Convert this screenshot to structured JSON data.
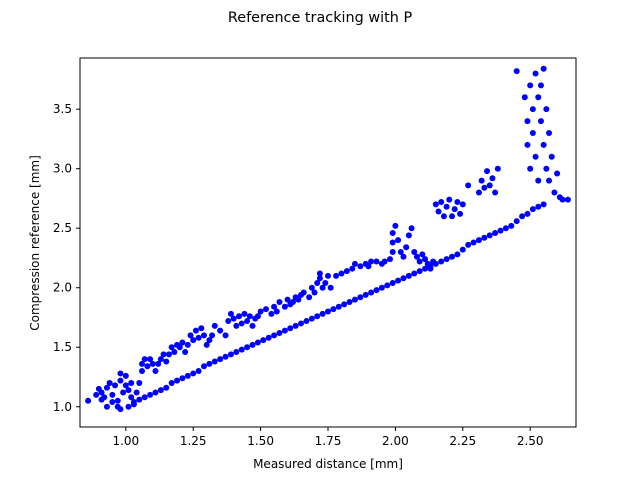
{
  "chart_data": {
    "type": "scatter",
    "title": "Reference tracking with P",
    "xlabel": "Measured distance [mm]",
    "ylabel": "Compression reference [mm]",
    "xlim": [
      0.83,
      2.67
    ],
    "ylim": [
      0.83,
      3.93
    ],
    "xticks": [
      "1.00",
      "1.25",
      "1.50",
      "1.75",
      "2.00",
      "2.25",
      "2.50"
    ],
    "xtick_values": [
      1.0,
      1.25,
      1.5,
      1.75,
      2.0,
      2.25,
      2.5
    ],
    "yticks": [
      "1.0",
      "1.5",
      "2.0",
      "2.5",
      "3.0",
      "3.5"
    ],
    "ytick_values": [
      1.0,
      1.5,
      2.0,
      2.5,
      3.0,
      3.5
    ],
    "grid": false,
    "marker_color": "#0000ff",
    "series": [
      {
        "points": [
          [
            0.86,
            1.05
          ],
          [
            0.89,
            1.1
          ],
          [
            0.9,
            1.15
          ],
          [
            0.91,
            1.12
          ],
          [
            0.92,
            1.08
          ],
          [
            0.93,
            1.16
          ],
          [
            0.94,
            1.2
          ],
          [
            0.95,
            1.1
          ],
          [
            0.96,
            1.18
          ],
          [
            0.97,
            1.05
          ],
          [
            0.97,
            1.0
          ],
          [
            0.98,
            1.22
          ],
          [
            0.98,
            1.28
          ],
          [
            0.99,
            1.12
          ],
          [
            1.0,
            1.18
          ],
          [
            1.0,
            1.26
          ],
          [
            1.01,
            1.14
          ],
          [
            1.02,
            1.2
          ],
          [
            1.02,
            1.08
          ],
          [
            1.03,
            1.02
          ],
          [
            1.04,
            1.12
          ],
          [
            1.05,
            1.2
          ],
          [
            1.06,
            1.3
          ],
          [
            1.06,
            1.36
          ],
          [
            1.07,
            1.4
          ],
          [
            1.08,
            1.34
          ],
          [
            1.09,
            1.4
          ],
          [
            1.1,
            1.36
          ],
          [
            1.11,
            1.3
          ],
          [
            1.12,
            1.36
          ],
          [
            1.13,
            1.4
          ],
          [
            1.14,
            1.44
          ],
          [
            1.15,
            1.38
          ],
          [
            1.16,
            1.44
          ],
          [
            1.17,
            1.5
          ],
          [
            1.18,
            1.46
          ],
          [
            1.19,
            1.52
          ],
          [
            1.2,
            1.5
          ],
          [
            1.21,
            1.54
          ],
          [
            1.22,
            1.46
          ],
          [
            1.23,
            1.52
          ],
          [
            1.24,
            1.6
          ],
          [
            1.25,
            1.56
          ],
          [
            1.26,
            1.64
          ],
          [
            1.27,
            1.58
          ],
          [
            1.28,
            1.66
          ],
          [
            1.29,
            1.6
          ],
          [
            1.3,
            1.52
          ],
          [
            1.31,
            1.56
          ],
          [
            1.32,
            1.6
          ],
          [
            1.33,
            1.68
          ],
          [
            1.35,
            1.64
          ],
          [
            1.37,
            1.6
          ],
          [
            1.38,
            1.72
          ],
          [
            1.39,
            1.78
          ],
          [
            1.4,
            1.74
          ],
          [
            1.41,
            1.68
          ],
          [
            1.42,
            1.76
          ],
          [
            1.43,
            1.7
          ],
          [
            1.44,
            1.78
          ],
          [
            1.45,
            1.72
          ],
          [
            1.46,
            1.76
          ],
          [
            1.47,
            1.68
          ],
          [
            1.48,
            1.74
          ],
          [
            1.49,
            1.76
          ],
          [
            1.5,
            1.8
          ],
          [
            1.52,
            1.82
          ],
          [
            1.54,
            1.78
          ],
          [
            1.55,
            1.84
          ],
          [
            1.56,
            1.8
          ],
          [
            1.57,
            1.88
          ],
          [
            1.59,
            1.84
          ],
          [
            1.6,
            1.9
          ],
          [
            1.61,
            1.86
          ],
          [
            1.62,
            1.88
          ],
          [
            1.63,
            1.92
          ],
          [
            1.64,
            1.9
          ],
          [
            1.65,
            1.94
          ],
          [
            1.66,
            1.96
          ],
          [
            1.68,
            1.92
          ],
          [
            1.69,
            2.0
          ],
          [
            1.7,
            1.96
          ],
          [
            1.71,
            2.04
          ],
          [
            1.72,
            2.08
          ],
          [
            1.72,
            2.12
          ],
          [
            1.73,
            2.0
          ],
          [
            1.74,
            2.04
          ],
          [
            1.75,
            2.1
          ],
          [
            1.76,
            2.0
          ],
          [
            1.78,
            2.1
          ],
          [
            1.8,
            2.12
          ],
          [
            1.82,
            2.14
          ],
          [
            1.84,
            2.16
          ],
          [
            1.85,
            2.2
          ],
          [
            1.87,
            2.18
          ],
          [
            1.89,
            2.2
          ],
          [
            1.9,
            2.18
          ],
          [
            1.91,
            2.22
          ],
          [
            1.93,
            2.22
          ],
          [
            1.95,
            2.2
          ],
          [
            1.96,
            2.22
          ],
          [
            1.98,
            2.24
          ],
          [
            1.99,
            2.3
          ],
          [
            1.99,
            2.38
          ],
          [
            1.99,
            2.46
          ],
          [
            2.0,
            2.52
          ],
          [
            2.01,
            2.4
          ],
          [
            2.02,
            2.3
          ],
          [
            2.03,
            2.26
          ],
          [
            2.04,
            2.34
          ],
          [
            2.05,
            2.44
          ],
          [
            2.06,
            2.5
          ],
          [
            2.07,
            2.3
          ],
          [
            2.08,
            2.26
          ],
          [
            2.09,
            2.22
          ],
          [
            2.1,
            2.28
          ],
          [
            2.11,
            2.24
          ],
          [
            2.12,
            2.2
          ],
          [
            2.13,
            2.16
          ],
          [
            2.14,
            2.22
          ],
          [
            2.15,
            2.7
          ],
          [
            2.16,
            2.64
          ],
          [
            2.17,
            2.72
          ],
          [
            2.18,
            2.6
          ],
          [
            2.19,
            2.68
          ],
          [
            2.2,
            2.74
          ],
          [
            2.21,
            2.6
          ],
          [
            2.22,
            2.66
          ],
          [
            2.23,
            2.72
          ],
          [
            2.24,
            2.62
          ],
          [
            2.25,
            2.7
          ],
          [
            2.27,
            2.86
          ],
          [
            2.31,
            2.8
          ],
          [
            2.32,
            2.9
          ],
          [
            2.33,
            2.84
          ],
          [
            2.34,
            2.98
          ],
          [
            2.35,
            2.86
          ],
          [
            2.36,
            2.92
          ],
          [
            2.37,
            2.8
          ],
          [
            2.38,
            3.0
          ],
          [
            2.45,
            3.82
          ],
          [
            2.48,
            3.6
          ],
          [
            2.49,
            3.4
          ],
          [
            2.49,
            3.2
          ],
          [
            2.5,
            3.7
          ],
          [
            2.5,
            3.0
          ],
          [
            2.51,
            3.5
          ],
          [
            2.51,
            3.3
          ],
          [
            2.52,
            3.8
          ],
          [
            2.52,
            3.1
          ],
          [
            2.53,
            3.6
          ],
          [
            2.53,
            2.9
          ],
          [
            2.54,
            3.4
          ],
          [
            2.54,
            3.7
          ],
          [
            2.55,
            3.2
          ],
          [
            2.55,
            3.84
          ],
          [
            2.56,
            3.0
          ],
          [
            2.56,
            3.5
          ],
          [
            2.57,
            3.3
          ],
          [
            2.57,
            2.9
          ],
          [
            2.58,
            3.1
          ],
          [
            2.59,
            2.8
          ],
          [
            2.6,
            2.96
          ],
          [
            2.61,
            2.76
          ],
          [
            2.62,
            2.74
          ],
          [
            2.64,
            2.74
          ],
          [
            0.91,
            1.06
          ],
          [
            0.93,
            1.0
          ],
          [
            0.95,
            1.04
          ],
          [
            0.98,
            0.98
          ],
          [
            1.01,
            1.0
          ],
          [
            1.03,
            1.04
          ],
          [
            1.05,
            1.06
          ],
          [
            1.07,
            1.08
          ],
          [
            1.09,
            1.1
          ],
          [
            1.11,
            1.12
          ],
          [
            1.13,
            1.14
          ],
          [
            1.15,
            1.16
          ],
          [
            1.17,
            1.2
          ],
          [
            1.19,
            1.22
          ],
          [
            1.21,
            1.24
          ],
          [
            1.23,
            1.26
          ],
          [
            1.25,
            1.28
          ],
          [
            1.27,
            1.3
          ],
          [
            1.29,
            1.34
          ],
          [
            1.31,
            1.36
          ],
          [
            1.33,
            1.38
          ],
          [
            1.35,
            1.4
          ],
          [
            1.37,
            1.42
          ],
          [
            1.39,
            1.44
          ],
          [
            1.41,
            1.46
          ],
          [
            1.43,
            1.48
          ],
          [
            1.45,
            1.5
          ],
          [
            1.47,
            1.52
          ],
          [
            1.49,
            1.54
          ],
          [
            1.51,
            1.56
          ],
          [
            1.53,
            1.58
          ],
          [
            1.55,
            1.6
          ],
          [
            1.57,
            1.62
          ],
          [
            1.59,
            1.64
          ],
          [
            1.61,
            1.66
          ],
          [
            1.63,
            1.68
          ],
          [
            1.65,
            1.7
          ],
          [
            1.67,
            1.72
          ],
          [
            1.69,
            1.74
          ],
          [
            1.71,
            1.76
          ],
          [
            1.73,
            1.78
          ],
          [
            1.75,
            1.8
          ],
          [
            1.77,
            1.82
          ],
          [
            1.79,
            1.84
          ],
          [
            1.81,
            1.86
          ],
          [
            1.83,
            1.88
          ],
          [
            1.85,
            1.9
          ],
          [
            1.87,
            1.92
          ],
          [
            1.89,
            1.94
          ],
          [
            1.91,
            1.96
          ],
          [
            1.93,
            1.98
          ],
          [
            1.95,
            2.0
          ],
          [
            1.97,
            2.02
          ],
          [
            1.99,
            2.04
          ],
          [
            2.01,
            2.06
          ],
          [
            2.03,
            2.08
          ],
          [
            2.05,
            2.1
          ],
          [
            2.07,
            2.12
          ],
          [
            2.09,
            2.14
          ],
          [
            2.11,
            2.16
          ],
          [
            2.13,
            2.18
          ],
          [
            2.15,
            2.2
          ],
          [
            2.17,
            2.22
          ],
          [
            2.19,
            2.24
          ],
          [
            2.21,
            2.26
          ],
          [
            2.23,
            2.28
          ],
          [
            2.25,
            2.32
          ],
          [
            2.27,
            2.36
          ],
          [
            2.29,
            2.38
          ],
          [
            2.31,
            2.4
          ],
          [
            2.33,
            2.42
          ],
          [
            2.35,
            2.44
          ],
          [
            2.37,
            2.46
          ],
          [
            2.39,
            2.48
          ],
          [
            2.41,
            2.5
          ],
          [
            2.43,
            2.52
          ],
          [
            2.45,
            2.56
          ],
          [
            2.47,
            2.6
          ],
          [
            2.49,
            2.62
          ],
          [
            2.51,
            2.66
          ],
          [
            2.53,
            2.68
          ],
          [
            2.55,
            2.7
          ]
        ]
      }
    ]
  }
}
